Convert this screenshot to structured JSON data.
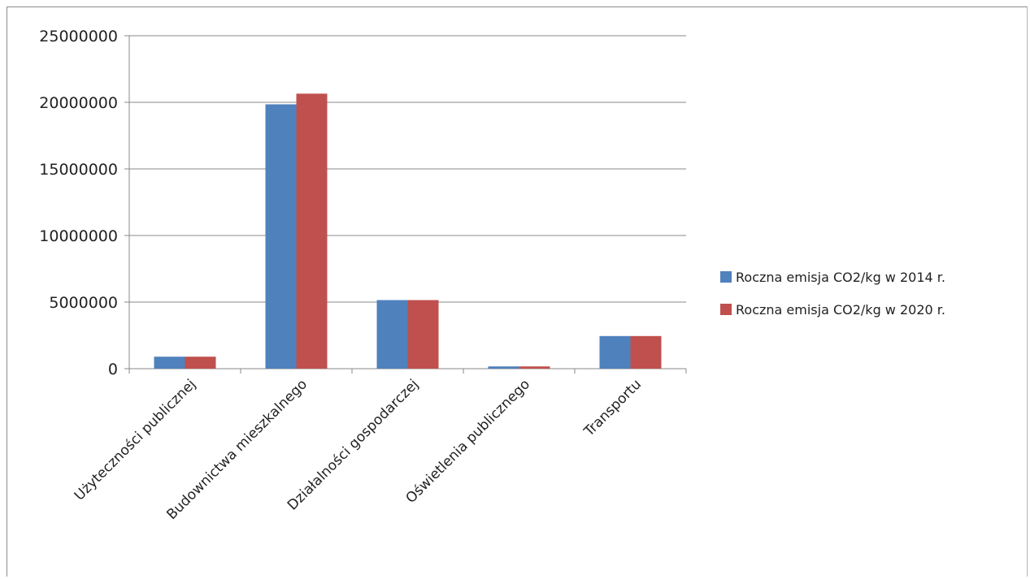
{
  "chart_data": {
    "type": "bar",
    "categories": [
      "Użyteczności publicznej",
      "Budownictwa mieszkalnego",
      "Działalności gospodarczej",
      "Oświetlenia publicznego",
      "Transportu"
    ],
    "series": [
      {
        "name": "Roczna emisja CO2/kg w 2014 r.",
        "color": "#4f81bd",
        "values": [
          900000,
          19850000,
          5150000,
          170000,
          2450000
        ]
      },
      {
        "name": "Roczna emisja CO2/kg w 2020 r.",
        "color": "#c0504d",
        "values": [
          900000,
          20650000,
          5150000,
          170000,
          2450000
        ]
      }
    ],
    "yticks": [
      "0",
      "5000000",
      "10000000",
      "15000000",
      "20000000",
      "25000000"
    ],
    "ylim": [
      0,
      25000000
    ],
    "grid": true,
    "legend_position": "right"
  }
}
